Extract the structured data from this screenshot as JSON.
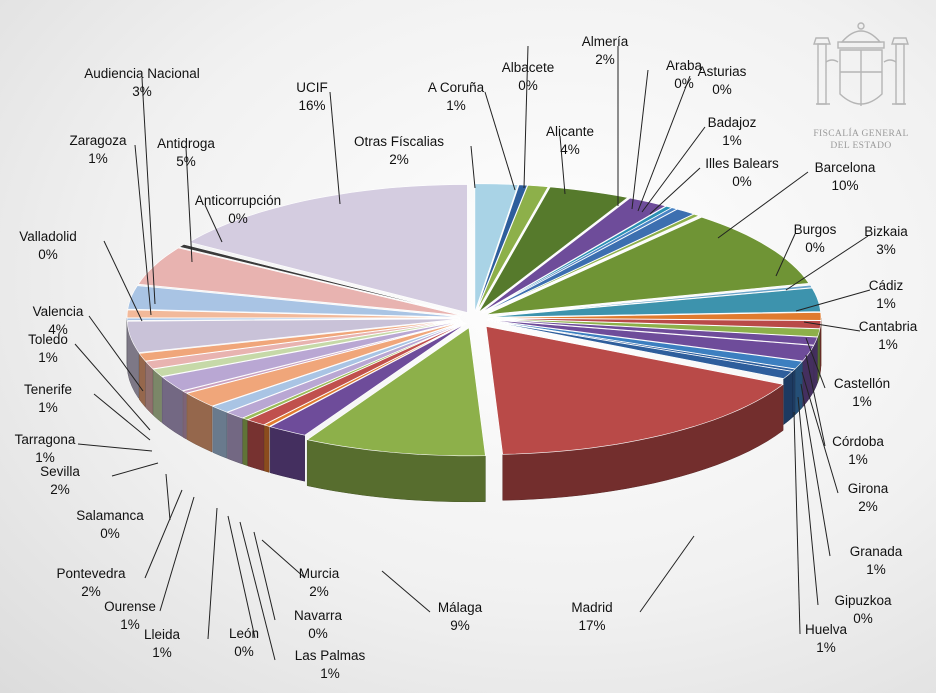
{
  "emblem": {
    "line1": "FISCALÍA GENERAL",
    "line2": "DEL ESTADO"
  },
  "colors": {
    "bg": "#eeeeee",
    "lavender": "#c9c2d8",
    "lightblue": "#a9c9e0",
    "darkblue": "#2e5e9c",
    "green": "#8db04a",
    "darkgreen": "#567a2c",
    "purple": "#6e4c9a",
    "red": "#b94a48",
    "teal": "#3d93ad",
    "orange": "#e07b2f",
    "pink": "#e8b3b0",
    "salmon": "#f0a67a"
  },
  "chart_data": {
    "type": "pie",
    "title": "",
    "series": [
      {
        "labels": [
          "Otras Físcalias",
          "Albacete",
          "A Coruña",
          "Alicante",
          "Almería",
          "Araba",
          "Asturias",
          "Badajoz",
          "Illes Balears",
          "Barcelona",
          "Burgos",
          "Bizkaia",
          "Cádiz",
          "Cantabria",
          "Castellón",
          "Córdoba",
          "Girona",
          "Granada",
          "Gipuzkoa",
          "Huelva",
          "Madrid",
          "Málaga",
          "Murcia",
          "Navarra",
          "Las Palmas",
          "León",
          "Lleida",
          "Ourense",
          "Pontevedra",
          "Salamanca",
          "Sevilla",
          "Tarragona",
          "Tenerife",
          "Toledo",
          "Valencia",
          "Valladolid",
          "Zaragoza",
          "Audiencia Nacional",
          "Antidroga",
          "Anticorrupción",
          "UCIF"
        ],
        "values": [
          2.1,
          0.4,
          1.0,
          4.0,
          2.0,
          0.3,
          0.3,
          1.0,
          0.3,
          10.0,
          0.3,
          3.0,
          1.0,
          1.0,
          1.0,
          1.0,
          2.0,
          1.0,
          0.3,
          1.0,
          17.0,
          9.0,
          2.0,
          0.3,
          1.0,
          0.3,
          1.0,
          1.0,
          2.0,
          0.3,
          2.0,
          1.0,
          1.0,
          1.0,
          4.0,
          0.3,
          1.0,
          3.0,
          5.0,
          0.4,
          16.0
        ],
        "percent_labels": [
          "2%",
          "0%",
          "1%",
          "4%",
          "2%",
          "0%",
          "0%",
          "1%",
          "0%",
          "10%",
          "0%",
          "3%",
          "1%",
          "1%",
          "1%",
          "1%",
          "2%",
          "1%",
          "0%",
          "1%",
          "17%",
          "9%",
          "2%",
          "0%",
          "1%",
          "0%",
          "1%",
          "1%",
          "2%",
          "0%",
          "2%",
          "1%",
          "1%",
          "1%",
          "4%",
          "0%",
          "1%",
          "3%",
          "5%",
          "0%",
          "16%"
        ],
        "colors": [
          "#a9d3e6",
          "#2e5e9c",
          "#8db04a",
          "#567a2c",
          "#6e4c9a",
          "#2b8fb4",
          "#4a84c4",
          "#3c6fb0",
          "#8db04a",
          "#6f9435",
          "#6aa3c9",
          "#3d93ad",
          "#e07b2f",
          "#b94a48",
          "#8db04a",
          "#6e4c9a",
          "#6e4c9a",
          "#3c7fc0",
          "#2e5e9c",
          "#2e5e9c",
          "#b94a48",
          "#8db04a",
          "#6e4c9a",
          "#e07b2f",
          "#c0504d",
          "#9bbb59",
          "#b9a7d3",
          "#a9c4e4",
          "#f0a67a",
          "#c9a0c0",
          "#b9a7d3",
          "#c6d9a8",
          "#e8b3b0",
          "#f0a67a",
          "#c9c2d8",
          "#a9c4e4",
          "#f2b99a",
          "#a9c4e4",
          "#e8b3b0",
          "#3a3a3a",
          "#d4cce0"
        ]
      }
    ]
  }
}
